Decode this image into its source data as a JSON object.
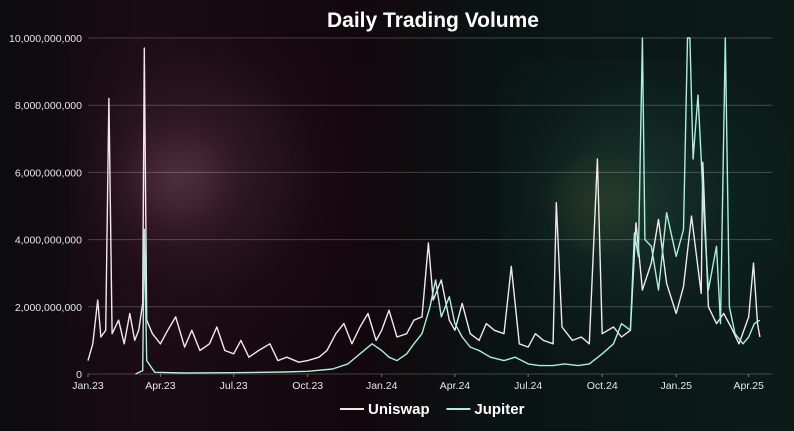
{
  "chart_data": {
    "type": "line",
    "title": "Daily Trading Volume",
    "xlabel": "",
    "ylabel": "",
    "ylim": [
      0,
      10000000000
    ],
    "y_ticks": [
      {
        "value": 0,
        "label": "0"
      },
      {
        "value": 2000000000,
        "label": "2,000,000,000"
      },
      {
        "value": 4000000000,
        "label": "4,000,000,000"
      },
      {
        "value": 6000000000,
        "label": "6,000,000,000"
      },
      {
        "value": 8000000000,
        "label": "8,000,000,000"
      },
      {
        "value": 10000000000,
        "label": "10,000,000,000"
      }
    ],
    "xlim": [
      "2023-01-01",
      "2025-04-30"
    ],
    "x_ticks": [
      {
        "value": "2023-01-01",
        "label": "Jan.23"
      },
      {
        "value": "2023-04-01",
        "label": "Apr.23"
      },
      {
        "value": "2023-07-01",
        "label": "Jul.23"
      },
      {
        "value": "2023-10-01",
        "label": "Oct.23"
      },
      {
        "value": "2024-01-01",
        "label": "Jan.24"
      },
      {
        "value": "2024-04-01",
        "label": "Apr.24"
      },
      {
        "value": "2024-07-01",
        "label": "Jul.24"
      },
      {
        "value": "2024-10-01",
        "label": "Oct.24"
      },
      {
        "value": "2025-01-01",
        "label": "Jan.25"
      },
      {
        "value": "2025-04-01",
        "label": "Apr.25"
      }
    ],
    "grid": true,
    "legend_position": "bottom",
    "series": [
      {
        "name": "Uniswap",
        "color": "#f2e6f0",
        "points": [
          [
            "2023-01-01",
            400000000
          ],
          [
            "2023-01-07",
            900000000
          ],
          [
            "2023-01-13",
            2200000000
          ],
          [
            "2023-01-17",
            1100000000
          ],
          [
            "2023-01-23",
            1300000000
          ],
          [
            "2023-01-27",
            8200000000
          ],
          [
            "2023-01-31",
            1200000000
          ],
          [
            "2023-02-08",
            1600000000
          ],
          [
            "2023-02-15",
            900000000
          ],
          [
            "2023-02-22",
            1800000000
          ],
          [
            "2023-02-28",
            1000000000
          ],
          [
            "2023-03-05",
            1300000000
          ],
          [
            "2023-03-10",
            2100000000
          ],
          [
            "2023-03-12",
            9700000000
          ],
          [
            "2023-03-15",
            1600000000
          ],
          [
            "2023-03-22",
            1200000000
          ],
          [
            "2023-04-01",
            900000000
          ],
          [
            "2023-04-10",
            1300000000
          ],
          [
            "2023-04-20",
            1700000000
          ],
          [
            "2023-05-01",
            800000000
          ],
          [
            "2023-05-10",
            1300000000
          ],
          [
            "2023-05-20",
            700000000
          ],
          [
            "2023-06-01",
            900000000
          ],
          [
            "2023-06-10",
            1400000000
          ],
          [
            "2023-06-20",
            700000000
          ],
          [
            "2023-07-01",
            600000000
          ],
          [
            "2023-07-10",
            1000000000
          ],
          [
            "2023-07-20",
            500000000
          ],
          [
            "2023-08-01",
            700000000
          ],
          [
            "2023-08-15",
            900000000
          ],
          [
            "2023-08-25",
            400000000
          ],
          [
            "2023-09-05",
            500000000
          ],
          [
            "2023-09-20",
            350000000
          ],
          [
            "2023-10-01",
            400000000
          ],
          [
            "2023-10-15",
            500000000
          ],
          [
            "2023-10-25",
            700000000
          ],
          [
            "2023-11-05",
            1200000000
          ],
          [
            "2023-11-15",
            1500000000
          ],
          [
            "2023-11-25",
            900000000
          ],
          [
            "2023-12-05",
            1400000000
          ],
          [
            "2023-12-15",
            1800000000
          ],
          [
            "2023-12-25",
            1000000000
          ],
          [
            "2024-01-01",
            1300000000
          ],
          [
            "2024-01-10",
            1900000000
          ],
          [
            "2024-01-20",
            1100000000
          ],
          [
            "2024-02-01",
            1200000000
          ],
          [
            "2024-02-10",
            1600000000
          ],
          [
            "2024-02-20",
            1700000000
          ],
          [
            "2024-02-28",
            3900000000
          ],
          [
            "2024-03-05",
            2200000000
          ],
          [
            "2024-03-15",
            2800000000
          ],
          [
            "2024-03-25",
            1600000000
          ],
          [
            "2024-04-01",
            1300000000
          ],
          [
            "2024-04-10",
            2100000000
          ],
          [
            "2024-04-20",
            1200000000
          ],
          [
            "2024-05-01",
            1000000000
          ],
          [
            "2024-05-10",
            1500000000
          ],
          [
            "2024-05-20",
            1300000000
          ],
          [
            "2024-06-01",
            1200000000
          ],
          [
            "2024-06-10",
            3200000000
          ],
          [
            "2024-06-20",
            900000000
          ],
          [
            "2024-07-01",
            800000000
          ],
          [
            "2024-07-10",
            1200000000
          ],
          [
            "2024-07-20",
            1000000000
          ],
          [
            "2024-08-01",
            900000000
          ],
          [
            "2024-08-05",
            5100000000
          ],
          [
            "2024-08-12",
            1400000000
          ],
          [
            "2024-08-25",
            1000000000
          ],
          [
            "2024-09-05",
            1100000000
          ],
          [
            "2024-09-15",
            900000000
          ],
          [
            "2024-09-25",
            6400000000
          ],
          [
            "2024-10-01",
            1200000000
          ],
          [
            "2024-10-15",
            1400000000
          ],
          [
            "2024-10-25",
            1100000000
          ],
          [
            "2024-11-05",
            1300000000
          ],
          [
            "2024-11-12",
            4500000000
          ],
          [
            "2024-11-20",
            2500000000
          ],
          [
            "2024-12-01",
            3300000000
          ],
          [
            "2024-12-10",
            4600000000
          ],
          [
            "2024-12-20",
            2700000000
          ],
          [
            "2025-01-01",
            1800000000
          ],
          [
            "2025-01-10",
            2600000000
          ],
          [
            "2025-01-20",
            4700000000
          ],
          [
            "2025-02-01",
            2400000000
          ],
          [
            "2025-02-03",
            6300000000
          ],
          [
            "2025-02-10",
            2000000000
          ],
          [
            "2025-02-20",
            1500000000
          ],
          [
            "2025-03-01",
            1800000000
          ],
          [
            "2025-03-10",
            1400000000
          ],
          [
            "2025-03-20",
            900000000
          ],
          [
            "2025-04-01",
            1700000000
          ],
          [
            "2025-04-07",
            3300000000
          ],
          [
            "2025-04-12",
            1500000000
          ],
          [
            "2025-04-15",
            1100000000
          ]
        ]
      },
      {
        "name": "Jupiter",
        "color": "#a8f0d8",
        "points": [
          [
            "2023-03-01",
            0
          ],
          [
            "2023-03-10",
            100000000
          ],
          [
            "2023-03-12",
            4300000000
          ],
          [
            "2023-03-15",
            400000000
          ],
          [
            "2023-03-25",
            50000000
          ],
          [
            "2023-05-01",
            30000000
          ],
          [
            "2023-07-01",
            40000000
          ],
          [
            "2023-09-01",
            60000000
          ],
          [
            "2023-10-01",
            80000000
          ],
          [
            "2023-11-01",
            150000000
          ],
          [
            "2023-11-20",
            300000000
          ],
          [
            "2023-12-05",
            600000000
          ],
          [
            "2023-12-20",
            900000000
          ],
          [
            "2024-01-01",
            700000000
          ],
          [
            "2024-01-10",
            500000000
          ],
          [
            "2024-01-20",
            400000000
          ],
          [
            "2024-02-01",
            600000000
          ],
          [
            "2024-02-10",
            900000000
          ],
          [
            "2024-02-20",
            1200000000
          ],
          [
            "2024-03-01",
            2000000000
          ],
          [
            "2024-03-08",
            2800000000
          ],
          [
            "2024-03-15",
            1700000000
          ],
          [
            "2024-03-25",
            2300000000
          ],
          [
            "2024-04-01",
            1500000000
          ],
          [
            "2024-04-10",
            1100000000
          ],
          [
            "2024-04-20",
            800000000
          ],
          [
            "2024-05-01",
            700000000
          ],
          [
            "2024-05-15",
            500000000
          ],
          [
            "2024-06-01",
            400000000
          ],
          [
            "2024-06-15",
            500000000
          ],
          [
            "2024-07-01",
            300000000
          ],
          [
            "2024-07-15",
            250000000
          ],
          [
            "2024-08-01",
            250000000
          ],
          [
            "2024-08-15",
            300000000
          ],
          [
            "2024-09-01",
            250000000
          ],
          [
            "2024-09-15",
            300000000
          ],
          [
            "2024-10-01",
            600000000
          ],
          [
            "2024-10-15",
            900000000
          ],
          [
            "2024-10-25",
            1500000000
          ],
          [
            "2024-11-05",
            1300000000
          ],
          [
            "2024-11-10",
            4200000000
          ],
          [
            "2024-11-15",
            3500000000
          ],
          [
            "2024-11-20",
            10000000000
          ],
          [
            "2024-11-23",
            4000000000
          ],
          [
            "2024-12-01",
            3800000000
          ],
          [
            "2024-12-10",
            2500000000
          ],
          [
            "2024-12-20",
            4800000000
          ],
          [
            "2025-01-01",
            3500000000
          ],
          [
            "2025-01-10",
            4300000000
          ],
          [
            "2025-01-15",
            10000000000
          ],
          [
            "2025-01-18",
            10000000000
          ],
          [
            "2025-01-22",
            6400000000
          ],
          [
            "2025-01-28",
            8300000000
          ],
          [
            "2025-02-05",
            4500000000
          ],
          [
            "2025-02-10",
            2500000000
          ],
          [
            "2025-02-20",
            3800000000
          ],
          [
            "2025-02-25",
            1500000000
          ],
          [
            "2025-03-03",
            10000000000
          ],
          [
            "2025-03-08",
            2000000000
          ],
          [
            "2025-03-15",
            1200000000
          ],
          [
            "2025-03-25",
            900000000
          ],
          [
            "2025-04-01",
            1100000000
          ],
          [
            "2025-04-08",
            1500000000
          ],
          [
            "2025-04-15",
            1600000000
          ]
        ]
      }
    ]
  }
}
